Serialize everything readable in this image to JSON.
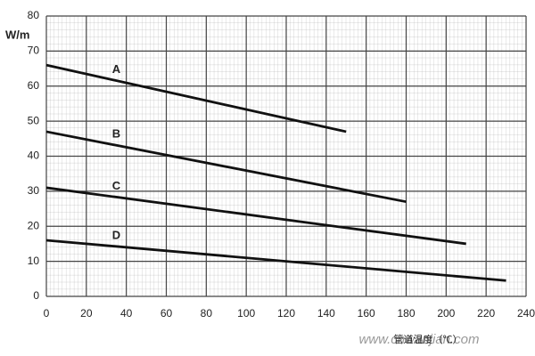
{
  "chart_data": {
    "type": "line",
    "y_label": "W/m",
    "x_label": "管道温度（℃）",
    "watermark": "www.cnwanjian.com",
    "series": [
      {
        "name": "A",
        "color": "#111111",
        "x": [
          0,
          150
        ],
        "values": [
          66,
          47
        ]
      },
      {
        "name": "B",
        "color": "#111111",
        "x": [
          0,
          180
        ],
        "values": [
          47,
          27
        ]
      },
      {
        "name": "C",
        "color": "#111111",
        "x": [
          0,
          210
        ],
        "values": [
          31,
          15
        ]
      },
      {
        "name": "D",
        "color": "#111111",
        "x": [
          0,
          230
        ],
        "values": [
          16,
          4.5
        ]
      }
    ],
    "xlim": [
      0,
      240
    ],
    "xticks": [
      0,
      20,
      40,
      60,
      80,
      100,
      120,
      140,
      160,
      180,
      200,
      220,
      240
    ],
    "ylim": [
      0,
      80
    ],
    "yticks": [
      0,
      10,
      20,
      30,
      40,
      50,
      60,
      70,
      80
    ],
    "grid": true
  }
}
